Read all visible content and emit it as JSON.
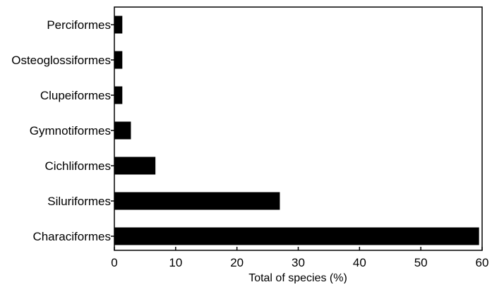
{
  "chart_data": {
    "type": "bar",
    "orientation": "horizontal",
    "categories": [
      "Perciformes",
      "Osteoglossiformes",
      "Clupeiformes",
      "Gymnotiformes",
      "Cichliformes",
      "Siluriformes",
      "Characiformes"
    ],
    "values": [
      1.3,
      1.3,
      1.3,
      2.7,
      6.7,
      27.0,
      59.5
    ],
    "title": "",
    "xlabel": "Total of species (%)",
    "ylabel": "",
    "xlim": [
      0,
      60
    ],
    "xticks": [
      0,
      10,
      20,
      30,
      40,
      50,
      60
    ],
    "grid": false,
    "legend": "none",
    "bar_color": "#000000",
    "frame": "box"
  }
}
